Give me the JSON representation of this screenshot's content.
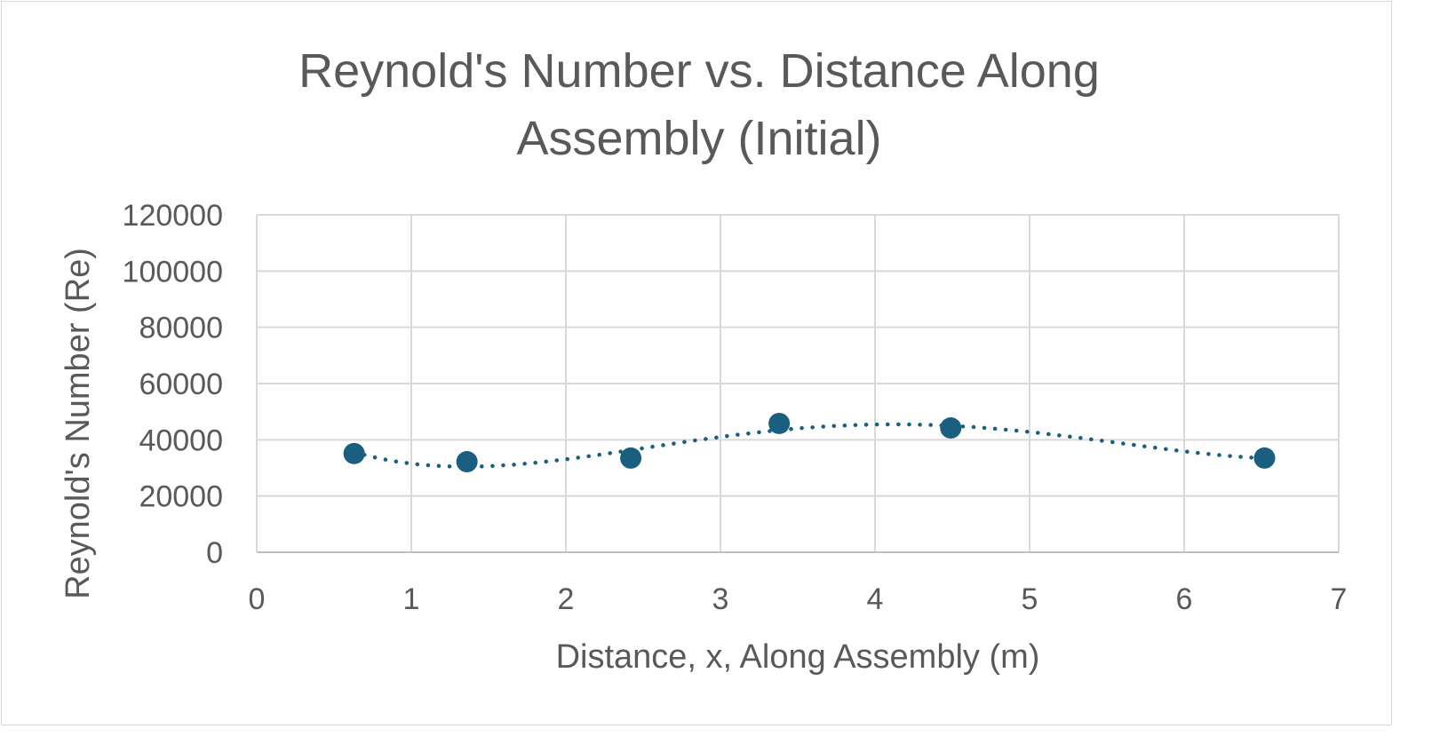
{
  "chart_data": {
    "type": "scatter",
    "title": "Reynold's Number vs. Distance Along Assembly (Initial)",
    "title_lines": [
      "Reynold's Number vs. Distance Along",
      "Assembly (Initial)"
    ],
    "xlabel": "Distance, x, Along Assembly (m)",
    "ylabel": "Reynold's Number (Re)",
    "xlim": [
      0,
      7
    ],
    "ylim": [
      0,
      120000
    ],
    "x_ticks": [
      "0",
      "1",
      "2",
      "3",
      "4",
      "5",
      "6",
      "7"
    ],
    "y_ticks": [
      "0",
      "20000",
      "40000",
      "60000",
      "80000",
      "100000",
      "120000"
    ],
    "grid": true,
    "legend": null,
    "series": [
      {
        "name": "Re",
        "color": "#1a5e80",
        "x": [
          0.63,
          1.36,
          2.42,
          3.38,
          4.49,
          6.52
        ],
        "y": [
          35100,
          32200,
          33500,
          45800,
          44200,
          33500
        ]
      }
    ],
    "trendline": {
      "type": "polynomial",
      "style": "dotted",
      "color": "#1a5e80"
    }
  }
}
